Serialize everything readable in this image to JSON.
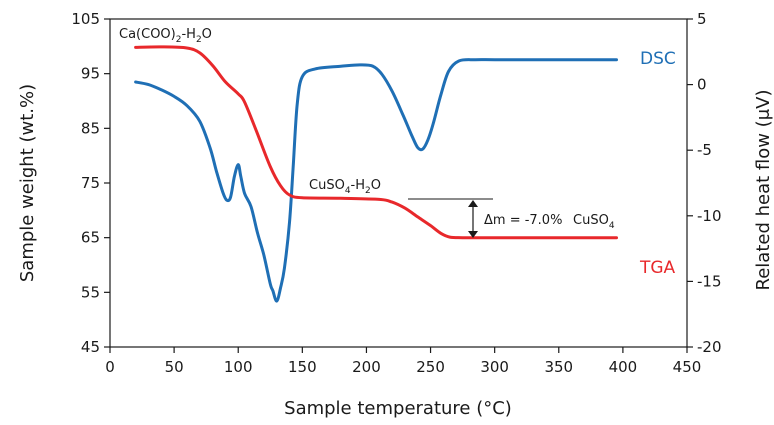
{
  "chart_data": {
    "type": "line",
    "title": "",
    "xlabel": "Sample temperature (°C)",
    "ylabel_left": "Sample weight (wt.%)",
    "ylabel_right": "Related heat flow (μV)",
    "xlim": [
      0,
      450
    ],
    "ylim_left": [
      45,
      105
    ],
    "ylim_right": [
      -20,
      5
    ],
    "x_ticks": [
      0,
      50,
      100,
      150,
      200,
      250,
      300,
      350,
      400,
      450
    ],
    "y_left_ticks": [
      45,
      55,
      65,
      75,
      85,
      95,
      105
    ],
    "y_right_ticks": [
      -20,
      -15,
      -10,
      -5,
      0,
      5
    ],
    "grid": false,
    "series": [
      {
        "name": "DSC",
        "axis": "right",
        "color": "#1f6fb5",
        "points": [
          [
            20,
            0.2
          ],
          [
            30,
            0.0
          ],
          [
            40,
            -0.4
          ],
          [
            50,
            -0.9
          ],
          [
            60,
            -1.6
          ],
          [
            70,
            -2.8
          ],
          [
            78,
            -4.8
          ],
          [
            83,
            -6.6
          ],
          [
            88,
            -8.2
          ],
          [
            91,
            -8.8
          ],
          [
            94,
            -8.6
          ],
          [
            97,
            -7.0
          ],
          [
            100,
            -6.1
          ],
          [
            102,
            -7.0
          ],
          [
            105,
            -8.3
          ],
          [
            110,
            -9.3
          ],
          [
            115,
            -11.3
          ],
          [
            120,
            -13.0
          ],
          [
            125,
            -15.2
          ],
          [
            127,
            -15.7
          ],
          [
            130,
            -16.5
          ],
          [
            133,
            -15.5
          ],
          [
            136,
            -14.0
          ],
          [
            140,
            -10.5
          ],
          [
            143,
            -6.0
          ],
          [
            146,
            -1.5
          ],
          [
            150,
            0.6
          ],
          [
            160,
            1.2
          ],
          [
            180,
            1.4
          ],
          [
            195,
            1.5
          ],
          [
            205,
            1.4
          ],
          [
            212,
            0.8
          ],
          [
            220,
            -0.5
          ],
          [
            228,
            -2.2
          ],
          [
            235,
            -3.8
          ],
          [
            240,
            -4.8
          ],
          [
            244,
            -4.9
          ],
          [
            248,
            -4.2
          ],
          [
            252,
            -3.0
          ],
          [
            258,
            -0.8
          ],
          [
            264,
            1.0
          ],
          [
            272,
            1.8
          ],
          [
            285,
            1.9
          ],
          [
            300,
            1.9
          ],
          [
            330,
            1.9
          ],
          [
            360,
            1.9
          ],
          [
            395,
            1.9
          ]
        ]
      },
      {
        "name": "TGA",
        "axis": "left",
        "color": "#e8282b",
        "points": [
          [
            20,
            99.8
          ],
          [
            40,
            99.9
          ],
          [
            60,
            99.7
          ],
          [
            70,
            98.8
          ],
          [
            80,
            96.5
          ],
          [
            90,
            93.5
          ],
          [
            100,
            91.3
          ],
          [
            105,
            89.8
          ],
          [
            115,
            84.0
          ],
          [
            125,
            78.0
          ],
          [
            133,
            74.5
          ],
          [
            140,
            72.8
          ],
          [
            150,
            72.3
          ],
          [
            180,
            72.2
          ],
          [
            210,
            72.0
          ],
          [
            220,
            71.5
          ],
          [
            230,
            70.4
          ],
          [
            240,
            68.8
          ],
          [
            250,
            67.2
          ],
          [
            258,
            65.8
          ],
          [
            265,
            65.1
          ],
          [
            275,
            65.0
          ],
          [
            300,
            65.0
          ],
          [
            350,
            65.0
          ],
          [
            395,
            65.0
          ]
        ]
      }
    ],
    "annotations": {
      "ca_oxalate": {
        "base": "Ca(COO)",
        "sub1": "2",
        "mid": "-H",
        "sub2": "2",
        "tail": "O"
      },
      "cuso4_h2o": {
        "base": "CuSO",
        "sub1": "4",
        "mid": "-H",
        "sub2": "2",
        "tail": "O"
      },
      "mass_loss": "Δm = -7.0%",
      "cuso4": {
        "base": "CuSO",
        "sub": "4"
      },
      "dsc_label": "DSC",
      "tga_label": "TGA"
    }
  }
}
